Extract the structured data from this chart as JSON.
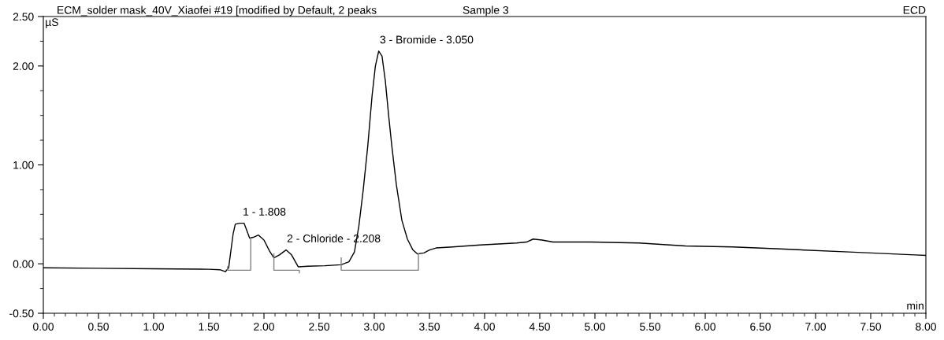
{
  "chart_data": {
    "type": "line",
    "title": "ECM_solder mask_40V_Xiaofei #19 [modified by Default, 2 peaks",
    "subtitle": "Sample 3",
    "annotations": [
      "ECD",
      {
        "text": "1 - 1.808",
        "x": 1.808,
        "y": 0.41
      },
      {
        "text": "2 - Chloride - 2.208",
        "x": 2.208,
        "y": 0.14
      },
      {
        "text": "3 - Bromide - 3.050",
        "x": 3.05,
        "y": 2.15
      }
    ],
    "xlabel": "min",
    "ylabel": "µS",
    "series": [
      {
        "color": "#000000",
        "x": [
          0,
          0.5,
          1.0,
          1.5,
          1.6,
          1.65,
          1.68,
          1.72,
          1.74,
          1.78,
          1.82,
          1.87,
          1.91,
          1.95,
          2.0,
          2.05,
          2.09,
          2.14,
          2.2,
          2.25,
          2.31,
          2.4,
          2.55,
          2.7,
          2.77,
          2.82,
          2.86,
          2.9,
          2.94,
          2.98,
          3.01,
          3.04,
          3.07,
          3.1,
          3.13,
          3.16,
          3.2,
          3.25,
          3.3,
          3.35,
          3.39,
          3.45,
          3.5,
          3.56,
          3.71,
          3.96,
          4.29,
          4.38,
          4.44,
          4.52,
          4.62,
          4.96,
          5.4,
          5.82,
          6.25,
          6.68,
          7.3,
          7.9,
          8.0
        ],
        "values": [
          -0.04,
          -0.045,
          -0.05,
          -0.055,
          -0.06,
          -0.08,
          -0.04,
          0.3,
          0.4,
          0.41,
          0.41,
          0.26,
          0.27,
          0.29,
          0.24,
          0.13,
          0.06,
          0.09,
          0.14,
          0.09,
          -0.03,
          -0.025,
          -0.02,
          -0.01,
          0.02,
          0.12,
          0.38,
          0.75,
          1.18,
          1.7,
          2.0,
          2.15,
          2.1,
          1.85,
          1.5,
          1.18,
          0.8,
          0.44,
          0.25,
          0.14,
          0.1,
          0.11,
          0.14,
          0.16,
          0.17,
          0.19,
          0.21,
          0.22,
          0.25,
          0.24,
          0.22,
          0.22,
          0.21,
          0.18,
          0.17,
          0.15,
          0.12,
          0.09,
          0.085
        ]
      },
      {
        "color": "#808080",
        "x": [
          1.67,
          1.67,
          1.88,
          1.88
        ],
        "values": [
          -0.03,
          -0.065,
          -0.065,
          0.26
        ]
      },
      {
        "color": "#808080",
        "x": [
          2.09,
          2.09,
          2.32,
          2.32
        ],
        "values": [
          0.1,
          -0.065,
          -0.065,
          -0.09
        ]
      },
      {
        "color": "#808080",
        "x": [
          2.7,
          2.7,
          3.4,
          3.4
        ],
        "values": [
          0.06,
          -0.065,
          -0.065,
          0.1
        ]
      }
    ],
    "xlim": [
      0,
      8
    ],
    "ylim": [
      -0.5,
      2.5
    ],
    "xticks": [
      {
        "value": 0,
        "label": "0.00"
      },
      {
        "value": 0.5,
        "label": "0.50"
      },
      {
        "value": 1,
        "label": "1.00"
      },
      {
        "value": 1.5,
        "label": "1.50"
      },
      {
        "value": 2,
        "label": "2.00"
      },
      {
        "value": 2.5,
        "label": "2.50"
      },
      {
        "value": 3,
        "label": "3.00"
      },
      {
        "value": 3.5,
        "label": "3.50"
      },
      {
        "value": 4,
        "label": "4.00"
      },
      {
        "value": 4.5,
        "label": "4.50"
      },
      {
        "value": 5,
        "label": "5.00"
      },
      {
        "value": 5.5,
        "label": "5.50"
      },
      {
        "value": 6,
        "label": "6.00"
      },
      {
        "value": 6.5,
        "label": "6.50"
      },
      {
        "value": 7,
        "label": "7.00"
      },
      {
        "value": 7.5,
        "label": "7.50"
      },
      {
        "value": 8,
        "label": "8.00"
      }
    ],
    "yticks": [
      {
        "value": -0.5,
        "label": "-0.50"
      },
      {
        "value": 0,
        "label": "0.00"
      },
      {
        "value": 1,
        "label": "1.00"
      },
      {
        "value": 2,
        "label": "2.00"
      },
      {
        "value": 2.5,
        "label": "2.50"
      }
    ],
    "grid": false,
    "legend": false,
    "marker": "none",
    "line_style": "solid"
  }
}
